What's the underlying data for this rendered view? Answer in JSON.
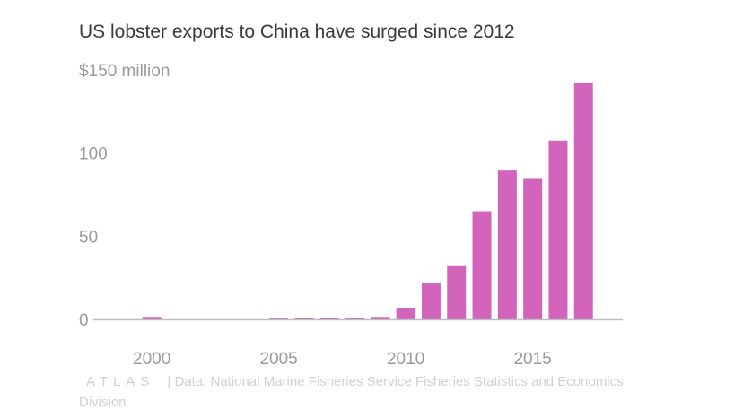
{
  "title": "US lobster exports to China have surged since 2012",
  "logo_text": "ATLAS",
  "source": "| Data: National Marine Fisheries Service Fisheries Statistics and Economics Division",
  "colors": {
    "bar": "#d364bc",
    "axis": "#bdbdbd",
    "text": "#3a3a3a",
    "tick": "#9a9a9a"
  },
  "chart_data": {
    "type": "bar",
    "title": "US lobster exports to China have surged since 2012",
    "xlabel": "",
    "ylabel": "",
    "x": [
      2000,
      2001,
      2002,
      2003,
      2004,
      2005,
      2006,
      2007,
      2008,
      2009,
      2010,
      2011,
      2012,
      2013,
      2014,
      2015,
      2016,
      2017
    ],
    "values": [
      1.5,
      0,
      0,
      0,
      0,
      0.5,
      0.6,
      0.7,
      0.8,
      1.5,
      7,
      22,
      32.5,
      65,
      89.5,
      85,
      107.5,
      142
    ],
    "ylim": [
      0,
      150
    ],
    "y_ticks": [
      {
        "value": 0,
        "label": "0"
      },
      {
        "value": 50,
        "label": "50"
      },
      {
        "value": 100,
        "label": "100"
      },
      {
        "value": 150,
        "label": "$150 million"
      }
    ],
    "x_ticks": [
      {
        "value": 2000,
        "label": "2000"
      },
      {
        "value": 2005,
        "label": "2005"
      },
      {
        "value": 2010,
        "label": "2010"
      },
      {
        "value": 2015,
        "label": "2015"
      }
    ],
    "grid": false,
    "legend": "none"
  }
}
